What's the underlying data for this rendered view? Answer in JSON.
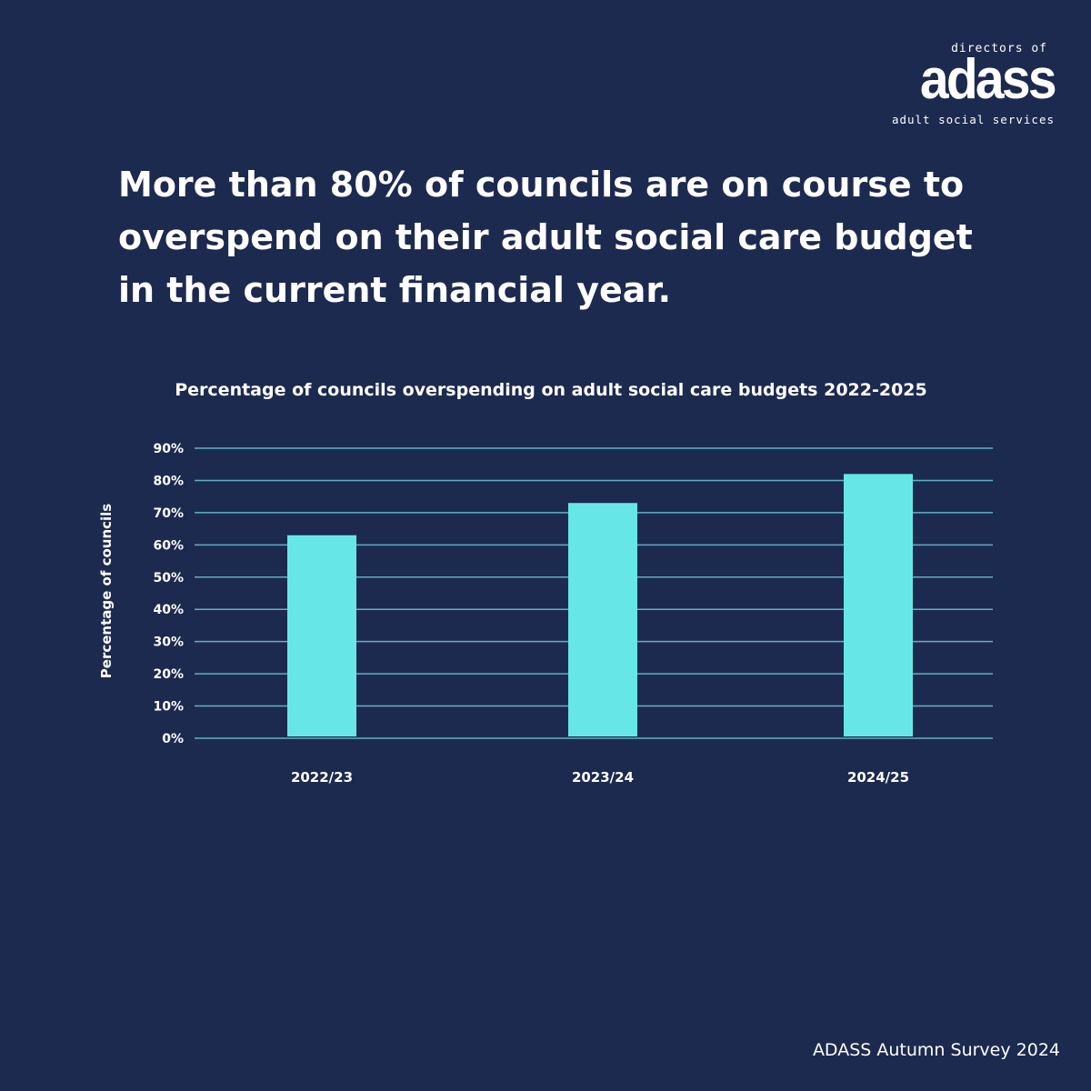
{
  "logo": {
    "top_text": "directors of",
    "main_text": "adass",
    "bottom_text": "adult social services"
  },
  "headline": "More than 80% of councils are on course to overspend on their adult social care budget in the current financial year.",
  "source": "ADASS Autumn Survey 2024",
  "colors": {
    "background": "#1d2a4f",
    "bar": "#67e6e8",
    "grid": "#5fb0c6",
    "text": "#ffffff"
  },
  "chart_data": {
    "type": "bar",
    "title": "Percentage of councils overspending on adult social care budgets 2022-2025",
    "xlabel": "",
    "ylabel": "Percentage of councils",
    "categories": [
      "2022/23",
      "2023/24",
      "2024/25"
    ],
    "values": [
      63,
      73,
      82
    ],
    "ylim": [
      0,
      90
    ],
    "yticks": [
      {
        "value": 0,
        "label": "0%"
      },
      {
        "value": 10,
        "label": "10%"
      },
      {
        "value": 20,
        "label": "20%"
      },
      {
        "value": 30,
        "label": "30%"
      },
      {
        "value": 40,
        "label": "40%"
      },
      {
        "value": 50,
        "label": "50%"
      },
      {
        "value": 60,
        "label": "60%"
      },
      {
        "value": 70,
        "label": "70%"
      },
      {
        "value": 80,
        "label": "80%"
      },
      {
        "value": 90,
        "label": "90%"
      }
    ],
    "grid": true,
    "legend": "none"
  }
}
